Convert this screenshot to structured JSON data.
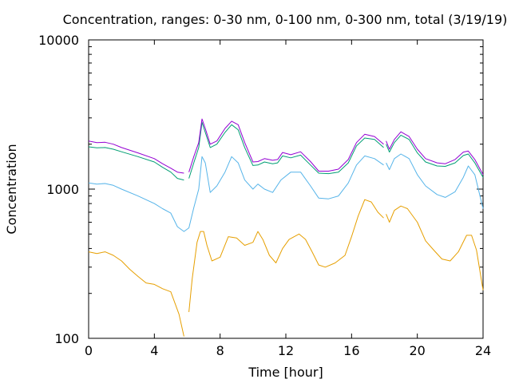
{
  "chart_data": {
    "type": "line",
    "title": "Concentration, ranges: 0-30 nm, 0-100 nm, 0-300 nm, total (3/19/19)",
    "xlabel": "Time [hour]",
    "ylabel": "Concentration",
    "xlim": [
      0,
      24
    ],
    "ylim": [
      100,
      10000
    ],
    "yscale": "log",
    "grid": false,
    "legend": "none",
    "x_ticks": [
      "0",
      "4",
      "8",
      "12",
      "16",
      "20",
      "24"
    ],
    "x_tick_values": [
      0,
      4,
      8,
      12,
      16,
      20,
      24
    ],
    "y_ticks": [
      "100",
      "1000",
      "10000"
    ],
    "y_tick_values": [
      100,
      1000,
      10000
    ],
    "series": [
      {
        "color": "#E69F00",
        "segments": [
          [
            [
              0,
              380
            ],
            [
              0.5,
              370
            ],
            [
              1,
              380
            ],
            [
              1.5,
              360
            ],
            [
              2,
              330
            ],
            [
              2.5,
              290
            ],
            [
              3,
              260
            ],
            [
              3.5,
              235
            ],
            [
              4,
              230
            ],
            [
              4.5,
              215
            ],
            [
              5,
              205
            ],
            [
              5.5,
              145
            ],
            [
              5.8,
              103
            ]
          ],
          [
            [
              6.1,
              150
            ],
            [
              6.3,
              250
            ],
            [
              6.6,
              440
            ],
            [
              6.8,
              520
            ],
            [
              7.0,
              520
            ],
            [
              7.2,
              420
            ],
            [
              7.5,
              330
            ],
            [
              8,
              350
            ],
            [
              8.5,
              480
            ],
            [
              9,
              470
            ],
            [
              9.5,
              420
            ],
            [
              10,
              440
            ],
            [
              10.3,
              520
            ],
            [
              10.6,
              460
            ],
            [
              11,
              360
            ],
            [
              11.4,
              320
            ],
            [
              11.8,
              400
            ],
            [
              12.2,
              460
            ],
            [
              12.8,
              500
            ],
            [
              13.2,
              460
            ],
            [
              13.6,
              380
            ],
            [
              14,
              310
            ],
            [
              14.4,
              300
            ],
            [
              15,
              320
            ],
            [
              15.6,
              360
            ],
            [
              16,
              480
            ],
            [
              16.4,
              660
            ],
            [
              16.8,
              850
            ],
            [
              17.2,
              820
            ],
            [
              17.6,
              700
            ],
            [
              17.95,
              640
            ]
          ],
          [
            [
              18.1,
              680
            ],
            [
              18.3,
              600
            ],
            [
              18.6,
              720
            ],
            [
              19,
              770
            ],
            [
              19.4,
              740
            ],
            [
              20,
              600
            ],
            [
              20.5,
              450
            ],
            [
              21,
              390
            ],
            [
              21.5,
              340
            ],
            [
              22,
              330
            ],
            [
              22.5,
              380
            ],
            [
              23,
              490
            ],
            [
              23.3,
              490
            ],
            [
              23.6,
              390
            ],
            [
              24,
              210
            ]
          ]
        ]
      },
      {
        "color": "#56B4E9",
        "segments": [
          [
            [
              0,
              1100
            ],
            [
              0.5,
              1080
            ],
            [
              1,
              1090
            ],
            [
              1.5,
              1060
            ],
            [
              2,
              1000
            ],
            [
              3,
              900
            ],
            [
              4,
              800
            ],
            [
              4.5,
              740
            ],
            [
              5,
              690
            ],
            [
              5.4,
              560
            ],
            [
              5.8,
              520
            ],
            [
              6.1,
              550
            ],
            [
              6.4,
              750
            ],
            [
              6.7,
              1000
            ],
            [
              6.9,
              1650
            ],
            [
              7.1,
              1500
            ],
            [
              7.4,
              950
            ],
            [
              7.8,
              1050
            ],
            [
              8.3,
              1300
            ],
            [
              8.7,
              1650
            ],
            [
              9.1,
              1500
            ],
            [
              9.5,
              1150
            ],
            [
              10,
              1000
            ],
            [
              10.3,
              1080
            ],
            [
              10.7,
              1000
            ],
            [
              11.2,
              950
            ],
            [
              11.7,
              1150
            ],
            [
              12.3,
              1300
            ],
            [
              12.9,
              1300
            ],
            [
              13.5,
              1050
            ],
            [
              14,
              870
            ],
            [
              14.6,
              860
            ],
            [
              15.2,
              900
            ],
            [
              15.8,
              1100
            ],
            [
              16.3,
              1450
            ],
            [
              16.8,
              1670
            ],
            [
              17.4,
              1600
            ],
            [
              17.95,
              1450
            ]
          ],
          [
            [
              18.1,
              1500
            ],
            [
              18.3,
              1350
            ],
            [
              18.6,
              1600
            ],
            [
              19,
              1720
            ],
            [
              19.5,
              1600
            ],
            [
              20,
              1250
            ],
            [
              20.5,
              1050
            ],
            [
              21.2,
              920
            ],
            [
              21.7,
              880
            ],
            [
              22.3,
              960
            ],
            [
              22.8,
              1200
            ],
            [
              23.1,
              1430
            ],
            [
              23.5,
              1250
            ],
            [
              24,
              740
            ]
          ]
        ]
      },
      {
        "color": "#009E73",
        "segments": [
          [
            [
              0,
              1920
            ],
            [
              0.5,
              1890
            ],
            [
              1,
              1900
            ],
            [
              1.5,
              1850
            ],
            [
              2,
              1780
            ],
            [
              3,
              1650
            ],
            [
              4,
              1520
            ],
            [
              4.5,
              1400
            ],
            [
              5,
              1300
            ],
            [
              5.4,
              1180
            ],
            [
              5.8,
              1150
            ]
          ],
          [
            [
              6.1,
              1180
            ],
            [
              6.4,
              1500
            ],
            [
              6.7,
              1900
            ],
            [
              6.9,
              2800
            ],
            [
              7.1,
              2400
            ],
            [
              7.4,
              1900
            ],
            [
              7.8,
              2000
            ],
            [
              8.3,
              2400
            ],
            [
              8.7,
              2700
            ],
            [
              9.1,
              2500
            ],
            [
              9.5,
              1900
            ],
            [
              10,
              1440
            ],
            [
              10.3,
              1450
            ],
            [
              10.7,
              1520
            ],
            [
              11.2,
              1480
            ],
            [
              11.5,
              1500
            ],
            [
              11.8,
              1670
            ],
            [
              12.3,
              1620
            ],
            [
              12.9,
              1690
            ],
            [
              13.5,
              1450
            ],
            [
              14,
              1280
            ],
            [
              14.6,
              1270
            ],
            [
              15.2,
              1300
            ],
            [
              15.8,
              1500
            ],
            [
              16.3,
              1950
            ],
            [
              16.8,
              2200
            ],
            [
              17.4,
              2150
            ],
            [
              17.95,
              1900
            ]
          ],
          [
            [
              18.1,
              2000
            ],
            [
              18.3,
              1770
            ],
            [
              18.6,
              2050
            ],
            [
              19,
              2300
            ],
            [
              19.5,
              2150
            ],
            [
              20,
              1750
            ],
            [
              20.5,
              1520
            ],
            [
              21.2,
              1430
            ],
            [
              21.7,
              1420
            ],
            [
              22.3,
              1500
            ],
            [
              22.8,
              1680
            ],
            [
              23.1,
              1720
            ],
            [
              23.5,
              1500
            ],
            [
              24,
              1200
            ]
          ]
        ]
      },
      {
        "color": "#9400D3",
        "segments": [
          [
            [
              0,
              2100
            ],
            [
              0.5,
              2050
            ],
            [
              1,
              2060
            ],
            [
              1.5,
              2000
            ],
            [
              2,
              1900
            ],
            [
              3,
              1750
            ],
            [
              4,
              1600
            ],
            [
              4.5,
              1480
            ],
            [
              5,
              1380
            ],
            [
              5.4,
              1300
            ],
            [
              5.8,
              1280
            ]
          ],
          [
            [
              6.1,
              1300
            ],
            [
              6.4,
              1650
            ],
            [
              6.7,
              2050
            ],
            [
              6.9,
              2950
            ],
            [
              7.1,
              2550
            ],
            [
              7.4,
              2000
            ],
            [
              7.8,
              2100
            ],
            [
              8.3,
              2550
            ],
            [
              8.7,
              2850
            ],
            [
              9.1,
              2700
            ],
            [
              9.5,
              2050
            ],
            [
              10,
              1520
            ],
            [
              10.3,
              1530
            ],
            [
              10.7,
              1600
            ],
            [
              11.2,
              1560
            ],
            [
              11.5,
              1580
            ],
            [
              11.8,
              1760
            ],
            [
              12.3,
              1700
            ],
            [
              12.9,
              1780
            ],
            [
              13.5,
              1530
            ],
            [
              14,
              1320
            ],
            [
              14.6,
              1320
            ],
            [
              15.2,
              1360
            ],
            [
              15.8,
              1580
            ],
            [
              16.3,
              2050
            ],
            [
              16.8,
              2330
            ],
            [
              17.4,
              2250
            ],
            [
              17.95,
              2000
            ]
          ],
          [
            [
              18.1,
              2100
            ],
            [
              18.3,
              1850
            ],
            [
              18.6,
              2150
            ],
            [
              19,
              2420
            ],
            [
              19.5,
              2250
            ],
            [
              20,
              1850
            ],
            [
              20.5,
              1600
            ],
            [
              21.2,
              1500
            ],
            [
              21.7,
              1480
            ],
            [
              22.3,
              1580
            ],
            [
              22.8,
              1770
            ],
            [
              23.1,
              1800
            ],
            [
              23.5,
              1580
            ],
            [
              24,
              1250
            ]
          ]
        ]
      }
    ]
  }
}
